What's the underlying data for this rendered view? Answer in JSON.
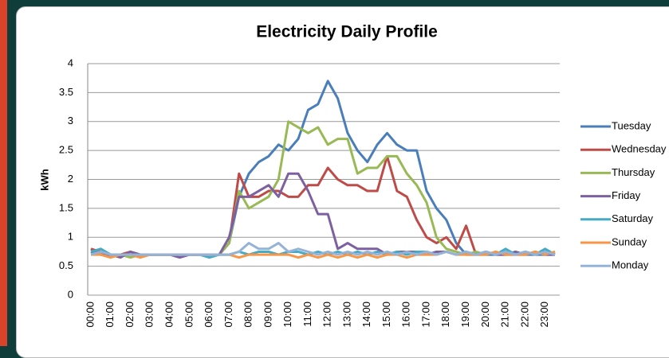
{
  "chart_data": {
    "type": "line",
    "title": "Electricity Daily Profile",
    "y_label": "kWh",
    "categories": [
      "00:00",
      null,
      "01:00",
      null,
      "02:00",
      null,
      "03:00",
      null,
      "04:00",
      null,
      "05:00",
      null,
      "06:00",
      null,
      "07:00",
      null,
      "08:00",
      null,
      "09:00",
      null,
      "10:00",
      null,
      "11:00",
      null,
      "12:00",
      null,
      "13:00",
      null,
      "14:00",
      null,
      "15:00",
      null,
      "16:00",
      null,
      "17:00",
      null,
      "18:00",
      null,
      "19:00",
      null,
      "20:00",
      null,
      "21:00",
      null,
      "22:00",
      null,
      "23:00",
      null
    ],
    "ylim": [
      0,
      4
    ],
    "yticks": [
      0,
      0.5,
      1,
      1.5,
      2,
      2.5,
      3,
      3.5,
      4
    ],
    "grid": true,
    "legend": "right",
    "series": [
      {
        "name": "Tuesday",
        "color": "#4a7ebb",
        "values": [
          0.8,
          0.7,
          0.7,
          0.7,
          0.7,
          0.7,
          0.7,
          0.7,
          0.7,
          0.7,
          0.7,
          0.7,
          0.7,
          0.7,
          0.9,
          1.7,
          2.1,
          2.3,
          2.4,
          2.6,
          2.5,
          2.7,
          3.2,
          3.3,
          3.7,
          3.4,
          2.8,
          2.5,
          2.3,
          2.6,
          2.8,
          2.6,
          2.5,
          2.5,
          1.8,
          1.5,
          1.3,
          0.9,
          0.7,
          0.7,
          0.7,
          0.7,
          0.7,
          0.7,
          0.7,
          0.7,
          0.7,
          0.7
        ]
      },
      {
        "name": "Wednesday",
        "color": "#be4b48",
        "values": [
          0.8,
          0.75,
          0.7,
          0.7,
          0.75,
          0.7,
          0.7,
          0.7,
          0.7,
          0.7,
          0.7,
          0.7,
          0.7,
          0.7,
          0.9,
          2.1,
          1.7,
          1.7,
          1.8,
          1.8,
          1.7,
          1.7,
          1.9,
          1.9,
          2.2,
          2.0,
          1.9,
          1.9,
          1.8,
          1.8,
          2.4,
          1.8,
          1.7,
          1.3,
          1.0,
          0.9,
          1.0,
          0.8,
          1.2,
          0.7,
          0.75,
          0.7,
          0.75,
          0.7,
          0.75,
          0.7,
          0.75,
          0.7
        ]
      },
      {
        "name": "Thursday",
        "color": "#98b954",
        "values": [
          0.75,
          0.7,
          0.7,
          0.7,
          0.65,
          0.7,
          0.7,
          0.7,
          0.7,
          0.7,
          0.7,
          0.7,
          0.7,
          0.7,
          0.9,
          1.8,
          1.5,
          1.6,
          1.7,
          2.0,
          3.0,
          2.9,
          2.8,
          2.9,
          2.6,
          2.7,
          2.7,
          2.1,
          2.2,
          2.2,
          2.4,
          2.4,
          2.1,
          1.9,
          1.6,
          1.0,
          0.8,
          0.75,
          0.7,
          0.75,
          0.7,
          0.75,
          0.7,
          0.75,
          0.7,
          0.75,
          0.7,
          0.75
        ]
      },
      {
        "name": "Friday",
        "color": "#7d60a0",
        "values": [
          0.75,
          0.7,
          0.7,
          0.65,
          0.75,
          0.7,
          0.7,
          0.7,
          0.7,
          0.65,
          0.7,
          0.7,
          0.7,
          0.7,
          1.0,
          1.7,
          1.7,
          1.8,
          1.9,
          1.7,
          2.1,
          2.1,
          1.8,
          1.4,
          1.4,
          0.8,
          0.9,
          0.8,
          0.8,
          0.8,
          0.7,
          0.75,
          0.75,
          0.75,
          0.7,
          0.75,
          0.75,
          0.7,
          0.75,
          0.7,
          0.75,
          0.7,
          0.7,
          0.75,
          0.7,
          0.75,
          0.7,
          0.7
        ]
      },
      {
        "name": "Saturday",
        "color": "#46aac5",
        "values": [
          0.75,
          0.8,
          0.7,
          0.7,
          0.7,
          0.7,
          0.7,
          0.7,
          0.7,
          0.7,
          0.7,
          0.7,
          0.65,
          0.7,
          0.7,
          0.75,
          0.7,
          0.75,
          0.75,
          0.7,
          0.75,
          0.75,
          0.7,
          0.75,
          0.7,
          0.75,
          0.7,
          0.75,
          0.7,
          0.75,
          0.7,
          0.75,
          0.7,
          0.75,
          0.75,
          0.7,
          0.75,
          0.7,
          0.75,
          0.7,
          0.75,
          0.7,
          0.8,
          0.7,
          0.75,
          0.7,
          0.8,
          0.7
        ]
      },
      {
        "name": "Sunday",
        "color": "#f79646",
        "values": [
          0.7,
          0.7,
          0.65,
          0.7,
          0.7,
          0.65,
          0.7,
          0.7,
          0.7,
          0.7,
          0.7,
          0.7,
          0.7,
          0.7,
          0.7,
          0.65,
          0.7,
          0.7,
          0.7,
          0.7,
          0.7,
          0.65,
          0.7,
          0.65,
          0.7,
          0.65,
          0.7,
          0.65,
          0.7,
          0.65,
          0.7,
          0.7,
          0.65,
          0.7,
          0.7,
          0.7,
          0.75,
          0.7,
          0.7,
          0.7,
          0.7,
          0.75,
          0.7,
          0.7,
          0.7,
          0.75,
          0.7,
          0.75
        ]
      },
      {
        "name": "Monday",
        "color": "#95b3d7",
        "values": [
          0.7,
          0.75,
          0.7,
          0.7,
          0.7,
          0.7,
          0.7,
          0.7,
          0.7,
          0.7,
          0.7,
          0.7,
          0.7,
          0.7,
          0.7,
          0.75,
          0.9,
          0.8,
          0.8,
          0.9,
          0.75,
          0.8,
          0.75,
          0.7,
          0.75,
          0.7,
          0.75,
          0.7,
          0.75,
          0.7,
          0.75,
          0.7,
          0.75,
          0.7,
          0.75,
          0.7,
          0.75,
          0.7,
          0.75,
          0.7,
          0.75,
          0.7,
          0.75,
          0.7,
          0.75,
          0.7,
          0.75,
          0.7
        ]
      }
    ]
  }
}
